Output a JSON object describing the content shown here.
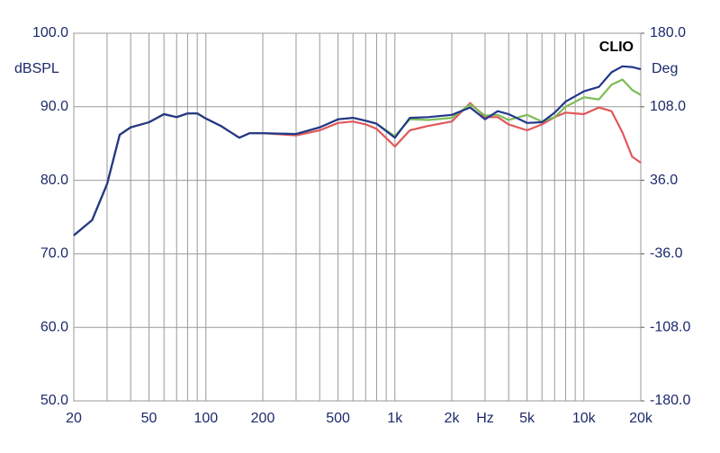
{
  "chart_data": {
    "type": "line",
    "brand": "CLIO",
    "ylabel": "dBSPL",
    "y2label": "Deg",
    "log_x": true,
    "grid": true,
    "xlim": [
      20,
      20000
    ],
    "ylim": [
      50,
      100
    ],
    "y2lim": [
      -180,
      180
    ],
    "xticks": [
      20,
      50,
      100,
      200,
      500,
      {
        "value": 1000,
        "label": "1k"
      },
      {
        "value": 2000,
        "label": "2k"
      },
      {
        "value": 3000,
        "label": "Hz"
      },
      {
        "value": 5000,
        "label": "5k"
      },
      {
        "value": 10000,
        "label": "10k"
      },
      {
        "value": 20000,
        "label": "20k"
      }
    ],
    "xgrid": [
      30,
      40,
      60,
      70,
      80,
      90,
      300,
      400,
      600,
      700,
      800,
      900,
      4000,
      6000,
      7000,
      8000,
      9000
    ],
    "yticks": [
      {
        "value": 50,
        "label": "50.0"
      },
      {
        "value": 60,
        "label": "60.0"
      },
      {
        "value": 70,
        "label": "70.0"
      },
      {
        "value": 80,
        "label": "80.0"
      },
      {
        "value": 90,
        "label": "90.0"
      },
      {
        "value": 100,
        "label": "100.0"
      }
    ],
    "y2ticks": [
      {
        "value": -180,
        "label": "-180.0"
      },
      {
        "value": -108,
        "label": "-108.0"
      },
      {
        "value": -36,
        "label": "-36.0"
      },
      {
        "value": 36,
        "label": "36.0"
      },
      {
        "value": 108,
        "label": "108.0"
      },
      {
        "value": 180,
        "label": "180.0"
      }
    ],
    "x": [
      20,
      25,
      30,
      35,
      40,
      50,
      60,
      70,
      80,
      90,
      100,
      120,
      150,
      170,
      200,
      300,
      400,
      500,
      600,
      700,
      800,
      1000,
      1200,
      1500,
      2000,
      2500,
      3000,
      3500,
      4000,
      5000,
      6000,
      7000,
      8000,
      10000,
      12000,
      14000,
      16000,
      18000,
      20000
    ],
    "series": [
      {
        "color": "#e0575a",
        "values": [
          72.5,
          74.6,
          79.5,
          86.2,
          87.2,
          87.9,
          89.0,
          88.6,
          89.1,
          89.1,
          88.4,
          87.4,
          85.8,
          86.4,
          86.4,
          86.1,
          86.8,
          87.8,
          88.0,
          87.6,
          87.0,
          84.6,
          86.8,
          87.4,
          88.0,
          90.5,
          88.6,
          88.6,
          87.6,
          86.8,
          87.6,
          88.6,
          89.2,
          89.0,
          89.9,
          89.4,
          86.5,
          83.2,
          82.4
        ]
      },
      {
        "color": "#7dbd55",
        "values": [
          72.5,
          74.6,
          79.5,
          86.2,
          87.2,
          87.9,
          89.0,
          88.6,
          89.1,
          89.1,
          88.4,
          87.4,
          85.8,
          86.4,
          86.4,
          86.3,
          87.2,
          88.3,
          88.5,
          88.1,
          87.7,
          86.0,
          88.3,
          88.2,
          88.5,
          90.3,
          88.8,
          88.9,
          88.2,
          88.9,
          88.0,
          88.6,
          90.0,
          91.3,
          91.0,
          93.0,
          93.7,
          92.3,
          91.6
        ]
      },
      {
        "color": "#22378a",
        "values": [
          72.5,
          74.6,
          79.5,
          86.2,
          87.2,
          87.9,
          89.0,
          88.6,
          89.1,
          89.1,
          88.4,
          87.4,
          85.8,
          86.4,
          86.4,
          86.3,
          87.2,
          88.3,
          88.5,
          88.1,
          87.7,
          85.8,
          88.5,
          88.6,
          88.9,
          89.9,
          88.3,
          89.4,
          89.0,
          87.8,
          87.9,
          89.2,
          90.7,
          92.1,
          92.7,
          94.7,
          95.5,
          95.4,
          95.1
        ]
      }
    ]
  }
}
